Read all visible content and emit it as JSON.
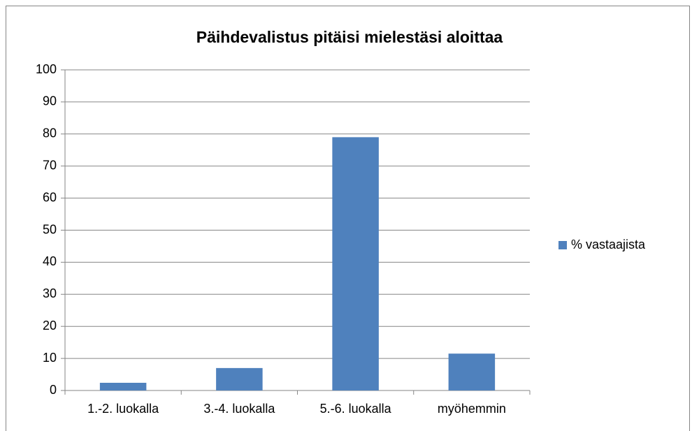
{
  "chart_data": {
    "type": "bar",
    "title": "Päihdevalistus pitäisi mielestäsi aloittaa",
    "categories": [
      "1.-2. luokalla",
      "3.-4. luokalla",
      "5.-6. luokalla",
      "myöhemmin"
    ],
    "series": [
      {
        "name": "% vastaajista",
        "color": "#4f81bd",
        "values": [
          2.4,
          7,
          79,
          11.5
        ]
      }
    ],
    "ylim": [
      0,
      100
    ],
    "yticks": [
      0,
      10,
      20,
      30,
      40,
      50,
      60,
      70,
      80,
      90,
      100
    ],
    "grid": true,
    "legend": "right"
  }
}
